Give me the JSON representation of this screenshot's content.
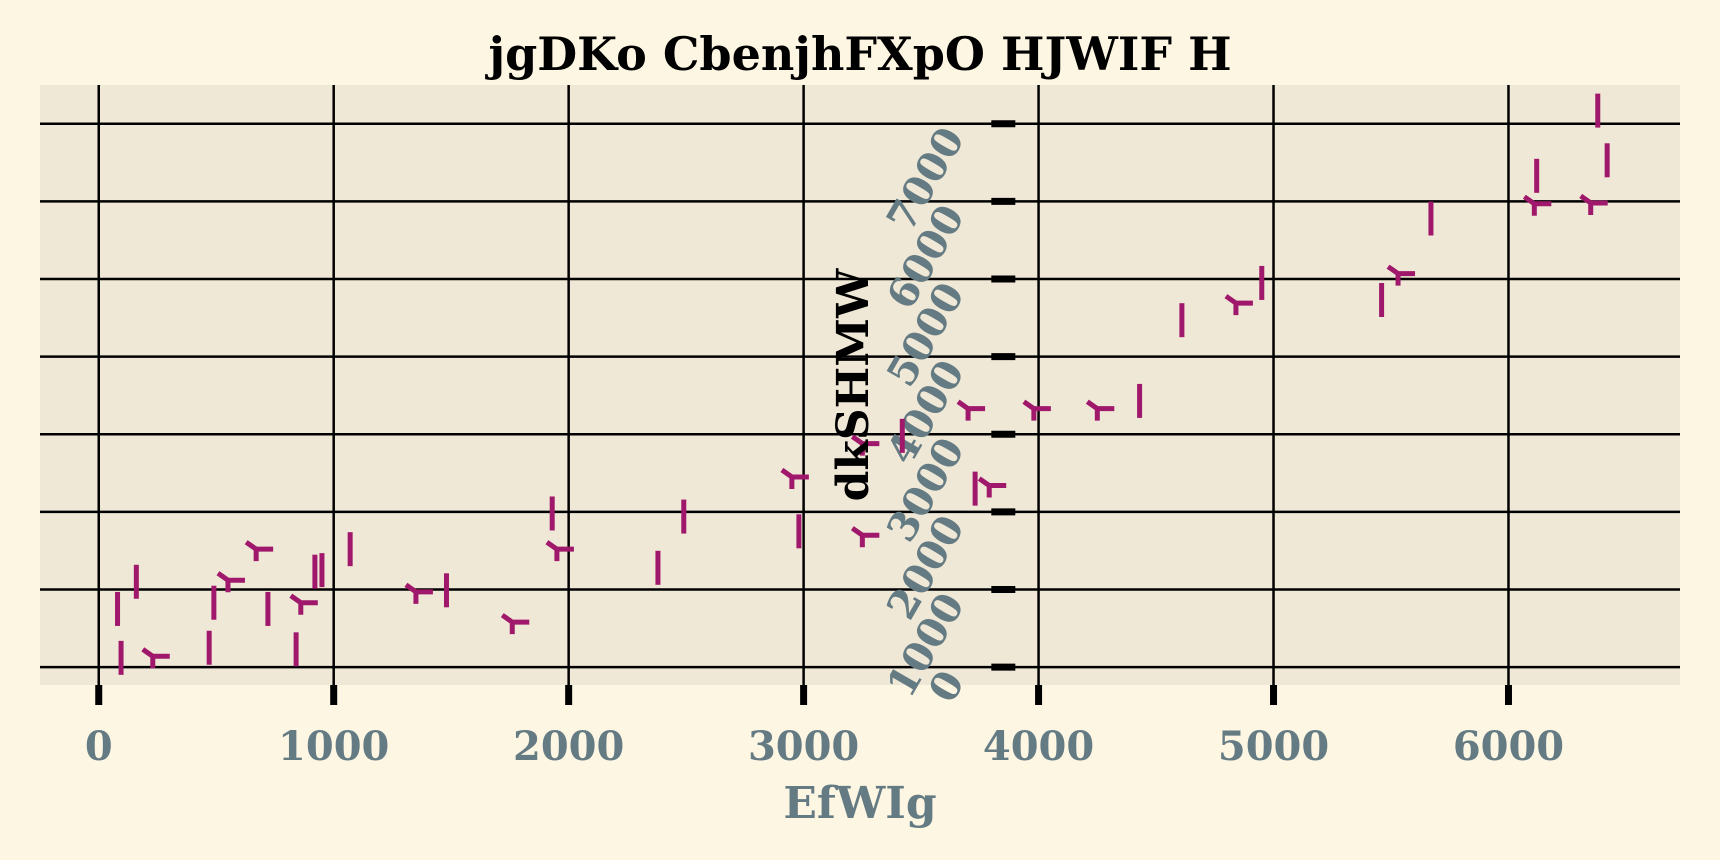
{
  "chart_data": {
    "type": "scatter",
    "title": "jgDKo CbenjhFXpO HJWIF H",
    "xlabel": "EfWIg",
    "ylabel": "dkSHMW",
    "xlim": [
      -250,
      6730
    ],
    "ylim": [
      -230,
      7500
    ],
    "x_ticks": [
      0,
      1000,
      2000,
      3000,
      4000,
      5000,
      6000
    ],
    "y_ticks": [
      0,
      1000,
      2000,
      3000,
      4000,
      5000,
      6000,
      7000
    ],
    "grid": true,
    "colors": {
      "background": "#fdf6e3",
      "plot_area": "#f0e8d6",
      "marker": "#a0186b",
      "tick_text": "#657b83",
      "grid": "#000000"
    },
    "series": [
      {
        "marker": "vline",
        "points": [
          [
            80,
            750
          ],
          [
            160,
            1100
          ],
          [
            95,
            120
          ],
          [
            470,
            250
          ],
          [
            490,
            830
          ],
          [
            720,
            750
          ],
          [
            840,
            230
          ],
          [
            920,
            1230
          ],
          [
            950,
            1250
          ],
          [
            1070,
            1520
          ],
          [
            1480,
            990
          ],
          [
            1930,
            1980
          ],
          [
            2380,
            1280
          ],
          [
            2490,
            1940
          ],
          [
            2980,
            1750
          ],
          [
            3420,
            2980
          ],
          [
            3730,
            2300
          ],
          [
            4430,
            3430
          ],
          [
            4610,
            4470
          ],
          [
            4950,
            4950
          ],
          [
            5460,
            4730
          ],
          [
            5670,
            5780
          ],
          [
            6120,
            6330
          ],
          [
            6380,
            7170
          ],
          [
            6420,
            6530
          ]
        ]
      },
      {
        "marker": "tri_down",
        "points": [
          [
            230,
            140
          ],
          [
            550,
            1120
          ],
          [
            670,
            1520
          ],
          [
            860,
            830
          ],
          [
            1350,
            970
          ],
          [
            1760,
            580
          ],
          [
            1950,
            1520
          ],
          [
            2950,
            2450
          ],
          [
            3250,
            1700
          ],
          [
            3250,
            2880
          ],
          [
            3700,
            3330
          ],
          [
            3980,
            3330
          ],
          [
            4250,
            3330
          ],
          [
            4840,
            4690
          ],
          [
            5530,
            5070
          ],
          [
            6110,
            5970
          ],
          [
            6350,
            5980
          ],
          [
            3790,
            2340
          ]
        ]
      }
    ]
  }
}
